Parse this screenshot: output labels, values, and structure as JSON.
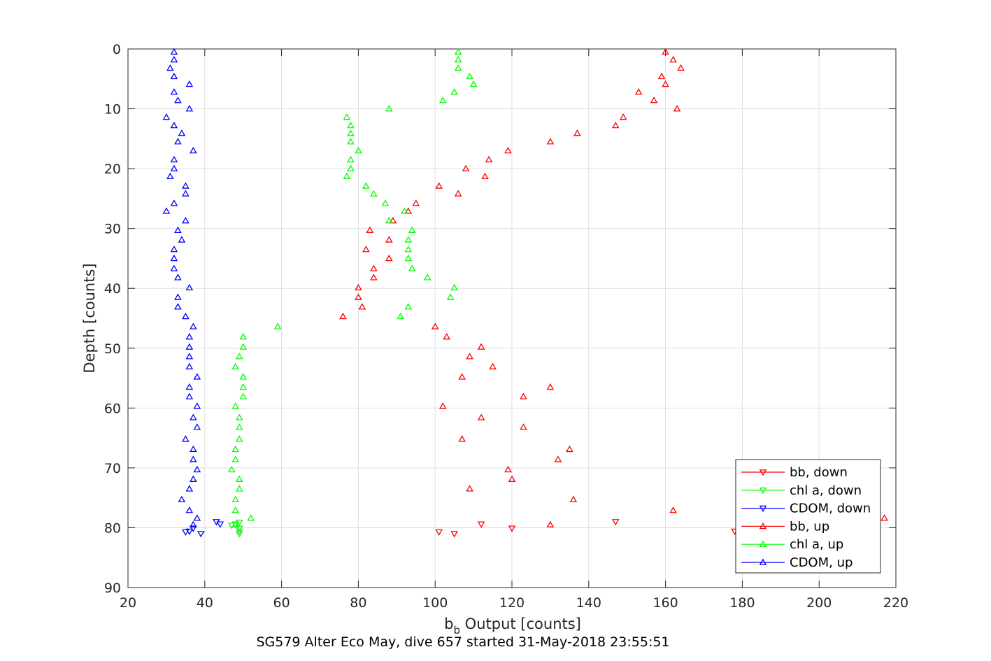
{
  "chart_data": {
    "type": "scatter",
    "title": "",
    "caption": "SG579 Alter Eco May, dive 657 started 31-May-2018 23:55:51",
    "xlabel": {
      "main": "b",
      "sub": "b",
      "rest": " Output [counts]"
    },
    "ylabel": "Depth [counts]",
    "xlim": [
      20,
      220
    ],
    "ylim": [
      0,
      90
    ],
    "y_reversed": true,
    "x_ticks": [
      20,
      40,
      60,
      80,
      100,
      120,
      140,
      160,
      180,
      200,
      220
    ],
    "y_ticks": [
      0,
      10,
      20,
      30,
      40,
      50,
      60,
      70,
      80,
      90
    ],
    "grid": true,
    "legend_position": "bottom-right",
    "series": [
      {
        "name": "bb, down",
        "color": "#ff0000",
        "marker": "triangle-down",
        "points": [
          [
            147,
            79.0
          ],
          [
            120,
            80.1
          ],
          [
            112,
            79.4
          ],
          [
            178,
            80.6
          ],
          [
            101,
            80.7
          ],
          [
            105,
            81.0
          ]
        ]
      },
      {
        "name": "chl a, down",
        "color": "#00ff00",
        "marker": "triangle-down",
        "points": [
          [
            49,
            79.1
          ],
          [
            48,
            79.4
          ],
          [
            47,
            79.6
          ],
          [
            49,
            80.1
          ],
          [
            49,
            80.6
          ],
          [
            49,
            81.0
          ]
        ]
      },
      {
        "name": "CDOM, down",
        "color": "#0000ff",
        "marker": "triangle-down",
        "points": [
          [
            43,
            79.0
          ],
          [
            44,
            79.4
          ],
          [
            37,
            80.1
          ],
          [
            36,
            80.6
          ],
          [
            35,
            80.7
          ],
          [
            39,
            81.0
          ]
        ]
      },
      {
        "name": "bb, up",
        "color": "#ff0000",
        "marker": "triangle-up",
        "points": [
          [
            160,
            0.5
          ],
          [
            162,
            1.8
          ],
          [
            164,
            3.2
          ],
          [
            159,
            4.6
          ],
          [
            160,
            5.9
          ],
          [
            153,
            7.2
          ],
          [
            157,
            8.6
          ],
          [
            163,
            10.0
          ],
          [
            149,
            11.4
          ],
          [
            147,
            12.8
          ],
          [
            137,
            14.1
          ],
          [
            130,
            15.5
          ],
          [
            119,
            17.0
          ],
          [
            114,
            18.5
          ],
          [
            108,
            20.0
          ],
          [
            113,
            21.3
          ],
          [
            101,
            22.9
          ],
          [
            106,
            24.2
          ],
          [
            95,
            25.8
          ],
          [
            93,
            27.1
          ],
          [
            89,
            28.7
          ],
          [
            83,
            30.3
          ],
          [
            88,
            31.9
          ],
          [
            82,
            33.5
          ],
          [
            88,
            35.0
          ],
          [
            84,
            36.7
          ],
          [
            84,
            38.2
          ],
          [
            80,
            39.9
          ],
          [
            80,
            41.5
          ],
          [
            81,
            43.1
          ],
          [
            76,
            44.7
          ],
          [
            100,
            46.4
          ],
          [
            103,
            48.1
          ],
          [
            112,
            49.8
          ],
          [
            109,
            51.4
          ],
          [
            115,
            53.1
          ],
          [
            107,
            54.8
          ],
          [
            130,
            56.5
          ],
          [
            123,
            58.1
          ],
          [
            102,
            59.7
          ],
          [
            112,
            61.6
          ],
          [
            123,
            63.2
          ],
          [
            107,
            65.2
          ],
          [
            135,
            66.9
          ],
          [
            132,
            68.6
          ],
          [
            119,
            70.3
          ],
          [
            120,
            71.9
          ],
          [
            109,
            73.5
          ],
          [
            136,
            75.3
          ],
          [
            162,
            77.1
          ],
          [
            217,
            78.4
          ],
          [
            130,
            79.5
          ]
        ]
      },
      {
        "name": "chl a, up",
        "color": "#00ff00",
        "marker": "triangle-up",
        "points": [
          [
            106,
            0.5
          ],
          [
            106,
            1.8
          ],
          [
            106,
            3.2
          ],
          [
            109,
            4.6
          ],
          [
            110,
            5.9
          ],
          [
            105,
            7.2
          ],
          [
            102,
            8.6
          ],
          [
            88,
            10.0
          ],
          [
            77,
            11.4
          ],
          [
            78,
            12.8
          ],
          [
            78,
            14.1
          ],
          [
            78,
            15.5
          ],
          [
            80,
            17.0
          ],
          [
            78,
            18.5
          ],
          [
            78,
            20.0
          ],
          [
            77,
            21.3
          ],
          [
            82,
            22.9
          ],
          [
            84,
            24.2
          ],
          [
            87,
            25.8
          ],
          [
            92,
            27.1
          ],
          [
            88,
            28.7
          ],
          [
            94,
            30.3
          ],
          [
            93,
            31.9
          ],
          [
            93,
            33.5
          ],
          [
            93,
            35.0
          ],
          [
            94,
            36.7
          ],
          [
            98,
            38.2
          ],
          [
            105,
            39.9
          ],
          [
            104,
            41.5
          ],
          [
            93,
            43.1
          ],
          [
            91,
            44.7
          ],
          [
            59,
            46.4
          ],
          [
            50,
            48.1
          ],
          [
            50,
            49.8
          ],
          [
            49,
            51.4
          ],
          [
            48,
            53.1
          ],
          [
            50,
            54.8
          ],
          [
            50,
            56.5
          ],
          [
            50,
            58.1
          ],
          [
            48,
            59.7
          ],
          [
            49,
            61.6
          ],
          [
            49,
            63.2
          ],
          [
            49,
            65.2
          ],
          [
            48,
            66.9
          ],
          [
            48,
            68.6
          ],
          [
            47,
            70.3
          ],
          [
            49,
            71.9
          ],
          [
            49,
            73.5
          ],
          [
            48,
            75.3
          ],
          [
            48,
            77.1
          ],
          [
            52,
            78.4
          ],
          [
            48,
            79.5
          ]
        ]
      },
      {
        "name": "CDOM, up",
        "color": "#0000ff",
        "marker": "triangle-up",
        "points": [
          [
            32,
            0.5
          ],
          [
            32,
            1.8
          ],
          [
            31,
            3.2
          ],
          [
            32,
            4.6
          ],
          [
            36,
            5.9
          ],
          [
            32,
            7.2
          ],
          [
            33,
            8.6
          ],
          [
            36,
            10.0
          ],
          [
            30,
            11.4
          ],
          [
            32,
            12.8
          ],
          [
            34,
            14.1
          ],
          [
            33,
            15.5
          ],
          [
            37,
            17.0
          ],
          [
            32,
            18.5
          ],
          [
            32,
            20.0
          ],
          [
            31,
            21.3
          ],
          [
            35,
            22.9
          ],
          [
            35,
            24.2
          ],
          [
            32,
            25.8
          ],
          [
            30,
            27.1
          ],
          [
            35,
            28.7
          ],
          [
            33,
            30.3
          ],
          [
            34,
            31.9
          ],
          [
            32,
            33.5
          ],
          [
            32,
            35.0
          ],
          [
            32,
            36.7
          ],
          [
            33,
            38.2
          ],
          [
            36,
            39.9
          ],
          [
            33,
            41.5
          ],
          [
            33,
            43.1
          ],
          [
            35,
            44.7
          ],
          [
            37,
            46.4
          ],
          [
            36,
            48.1
          ],
          [
            36,
            49.8
          ],
          [
            36,
            51.4
          ],
          [
            36,
            53.1
          ],
          [
            38,
            54.8
          ],
          [
            36,
            56.5
          ],
          [
            36,
            58.1
          ],
          [
            38,
            59.7
          ],
          [
            37,
            61.6
          ],
          [
            38,
            63.2
          ],
          [
            35,
            65.2
          ],
          [
            37,
            66.9
          ],
          [
            37,
            68.6
          ],
          [
            38,
            70.3
          ],
          [
            37,
            71.9
          ],
          [
            36,
            73.5
          ],
          [
            34,
            75.3
          ],
          [
            36,
            77.1
          ],
          [
            38,
            78.4
          ],
          [
            37,
            79.5
          ]
        ]
      }
    ]
  }
}
